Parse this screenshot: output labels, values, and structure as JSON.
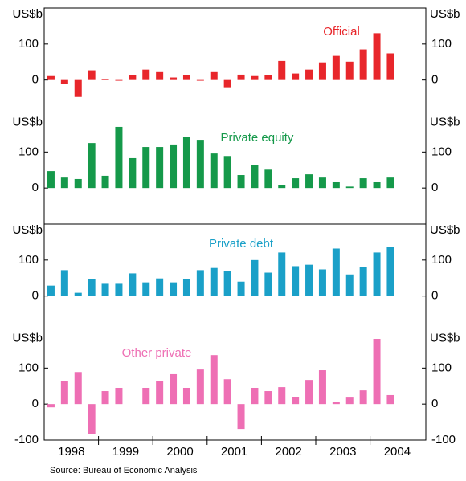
{
  "chart_data": [
    {
      "type": "bar",
      "y_label": "US$b",
      "ylim": [
        -100,
        200
      ],
      "yticks": [
        0,
        100
      ],
      "series": [
        {
          "name": "Official",
          "color": "#e8262b",
          "values": [
            11,
            -10,
            -47,
            27,
            3,
            -2,
            13,
            29,
            22,
            7,
            13,
            -2,
            22,
            -20,
            15,
            11,
            13,
            53,
            18,
            29,
            49,
            67,
            51,
            85,
            130,
            74
          ]
        }
      ]
    },
    {
      "type": "bar",
      "y_label": "US$b",
      "ylim": [
        -100,
        200
      ],
      "yticks": [
        0,
        100
      ],
      "series": [
        {
          "name": "Private equity",
          "color": "#15994a",
          "values": [
            47,
            29,
            25,
            125,
            34,
            170,
            83,
            114,
            114,
            121,
            143,
            134,
            96,
            89,
            36,
            63,
            51,
            9,
            27,
            38,
            29,
            16,
            4,
            27,
            16,
            29
          ]
        }
      ]
    },
    {
      "type": "bar",
      "y_label": "US$b",
      "ylim": [
        -100,
        200
      ],
      "yticks": [
        0,
        100
      ],
      "series": [
        {
          "name": "Private debt",
          "color": "#1aa0c8",
          "values": [
            29,
            72,
            9,
            47,
            34,
            34,
            63,
            38,
            49,
            38,
            47,
            72,
            78,
            69,
            40,
            100,
            65,
            121,
            83,
            87,
            74,
            132,
            60,
            81,
            121,
            136
          ]
        }
      ]
    },
    {
      "type": "bar",
      "y_label": "US$b",
      "ylim": [
        -100,
        200
      ],
      "yticks": [
        -100,
        0,
        100
      ],
      "x_labels": [
        "1998",
        "1999",
        "2000",
        "2001",
        "2002",
        "2003",
        "2004"
      ],
      "series": [
        {
          "name": "Other private",
          "color": "#ee6fb4",
          "values": [
            -9,
            65,
            89,
            -83,
            36,
            45,
            0,
            45,
            63,
            83,
            45,
            96,
            136,
            69,
            -69,
            45,
            36,
            47,
            20,
            67,
            94,
            7,
            18,
            38,
            181,
            25
          ]
        }
      ]
    }
  ],
  "source": "Source: Bureau of Economic Analysis"
}
